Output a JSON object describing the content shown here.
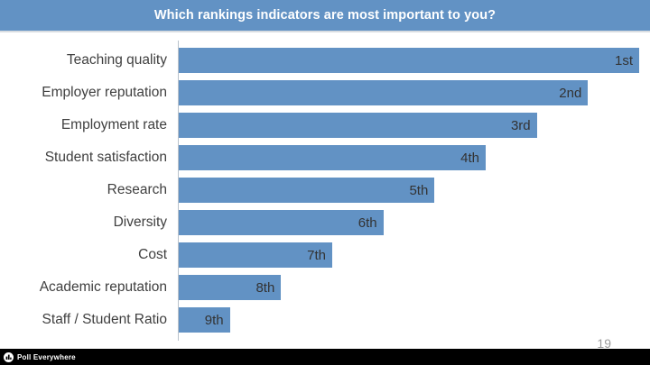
{
  "slide": {
    "title": "Which rankings indicators are most important to you?",
    "page_number": "19",
    "footer_brand": "Poll Everywhere"
  },
  "colors": {
    "accent_blue": "#6292c4",
    "header_divider": "#d9dde1",
    "label_text": "#3f3f3f",
    "rank_text": "#333333",
    "axis_line": "#b9c2cb",
    "page_number": "#9b9b9b",
    "footer_bg": "#000000",
    "title_text": "#ffffff"
  },
  "chart_data": {
    "type": "bar",
    "orientation": "horizontal",
    "title": "Which rankings indicators are most important to you?",
    "categories": [
      "Teaching quality",
      "Employer reputation",
      "Employment rate",
      "Student satisfaction",
      "Research",
      "Diversity",
      "Cost",
      "Academic reputation",
      "Staff / Student Ratio"
    ],
    "bar_labels": [
      "1st",
      "2nd",
      "3rd",
      "4th",
      "5th",
      "6th",
      "7th",
      "8th",
      "9th"
    ],
    "values": [
      9,
      8,
      7,
      6,
      5,
      4,
      3,
      2,
      1
    ],
    "xlim": [
      0,
      9
    ],
    "xlabel": "",
    "ylabel": "",
    "grid": false,
    "legend": false,
    "bar_color": "#6292c4"
  }
}
